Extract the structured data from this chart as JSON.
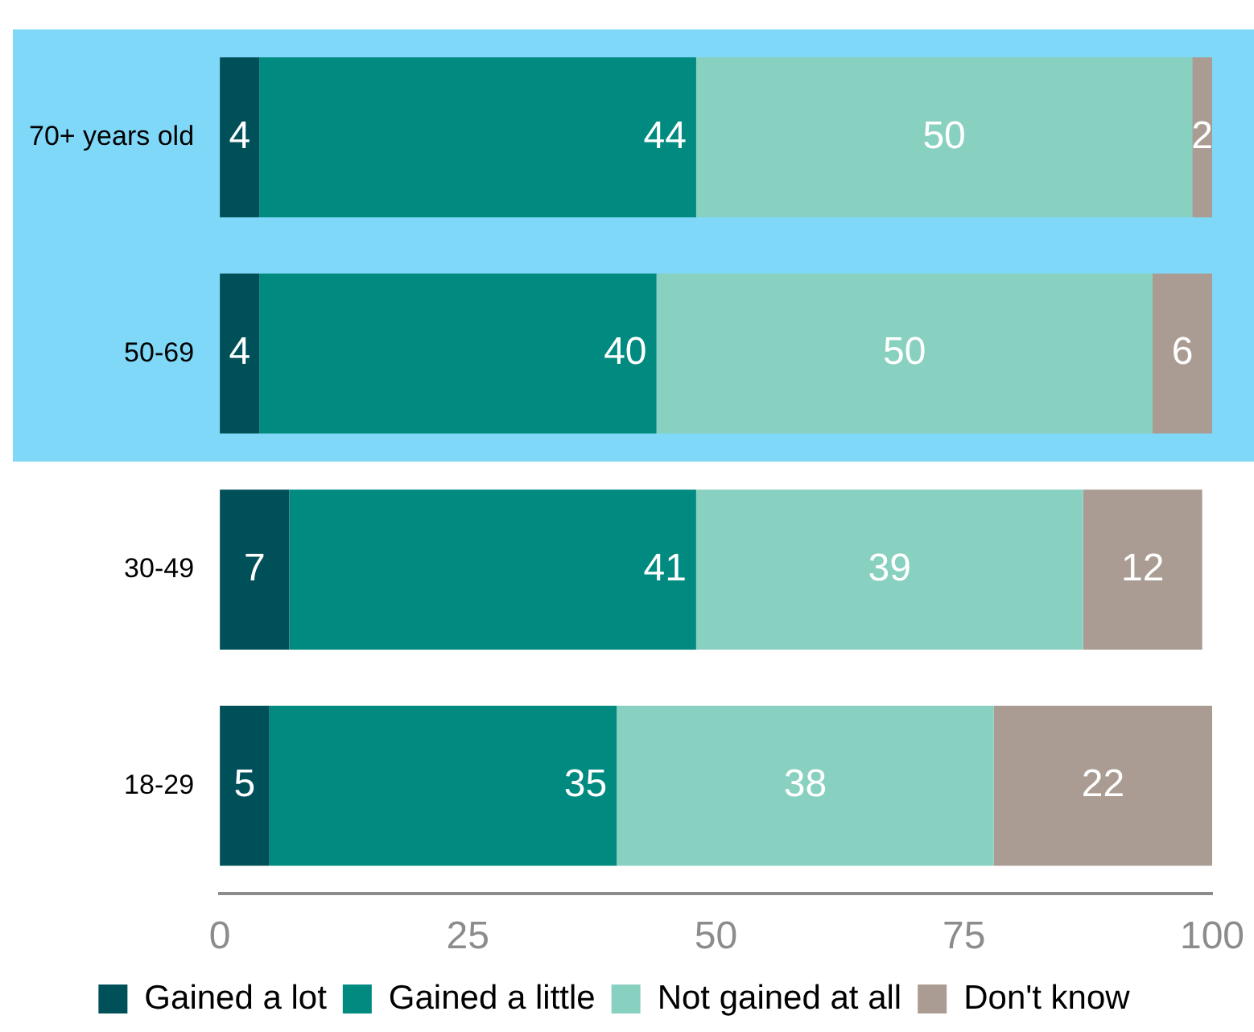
{
  "chart_data": {
    "type": "bar",
    "orientation": "horizontal",
    "stacked": true,
    "categories": [
      "70+ years old",
      "50-69",
      "30-49",
      "18-29"
    ],
    "series": [
      {
        "name": "Gained a lot",
        "color": "#00505a",
        "values": [
          4,
          4,
          7,
          5
        ]
      },
      {
        "name": "Gained a little",
        "color": "#008a80",
        "values": [
          44,
          40,
          41,
          35
        ]
      },
      {
        "name": "Not gained at all",
        "color": "#88d0c0",
        "values": [
          50,
          50,
          39,
          38
        ]
      },
      {
        "name": "Don't know",
        "color": "#aa9c92",
        "values": [
          2,
          6,
          12,
          22
        ]
      }
    ],
    "xlim": [
      0,
      100
    ],
    "xticks": [
      0,
      25,
      50,
      75,
      100
    ],
    "grid": false,
    "data_labels": true,
    "legend": "bottom",
    "bands": [
      {
        "axis": "y",
        "from": "70+ years old",
        "to": "50-69",
        "color": "#80d8f8"
      }
    ]
  }
}
